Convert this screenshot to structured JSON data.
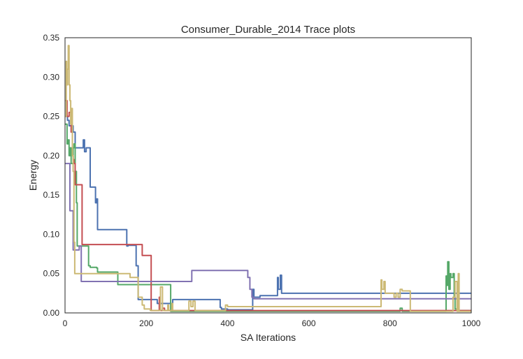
{
  "chart_data": {
    "type": "line",
    "title": "Consumer_Durable_2014 Trace plots",
    "xlabel": "SA Iterations",
    "ylabel": "Energy",
    "xlim": [
      0,
      1000
    ],
    "ylim": [
      0,
      0.35
    ],
    "xticks": [
      0,
      200,
      400,
      600,
      800,
      1000
    ],
    "xtick_labels": [
      "0",
      "200",
      "400",
      "600",
      "800",
      "1000"
    ],
    "yticks": [
      0,
      0.05,
      0.1,
      0.15,
      0.2,
      0.25,
      0.3,
      0.35
    ],
    "ytick_labels": [
      "0.00",
      "0.05",
      "0.10",
      "0.15",
      "0.20",
      "0.25",
      "0.30",
      "0.35"
    ],
    "grid": false,
    "legend": "none",
    "series": [
      {
        "color": "#4c72b0",
        "x": [
          0,
          3,
          6,
          10,
          12,
          16,
          20,
          25,
          45,
          48,
          52,
          62,
          70,
          75,
          78,
          80,
          150,
          152,
          155,
          170,
          175,
          180,
          225,
          227,
          265,
          268,
          380,
          382,
          385,
          400,
          460,
          462,
          465,
          470,
          480,
          520,
          523,
          525,
          530,
          532,
          533,
          1000
        ],
        "y": [
          0.25,
          0.25,
          0.245,
          0.238,
          0.238,
          0.238,
          0.23,
          0.21,
          0.22,
          0.205,
          0.21,
          0.16,
          0.16,
          0.14,
          0.145,
          0.106,
          0.106,
          0.085,
          0.086,
          0.086,
          0.06,
          0.017,
          0.017,
          0.012,
          0.017,
          0.017,
          0.017,
          0.007,
          0.005,
          0.004,
          0.004,
          0.03,
          0.02,
          0.02,
          0.022,
          0.022,
          0.045,
          0.03,
          0.048,
          0.048,
          0.025,
          0.025
        ]
      },
      {
        "color": "#55a868",
        "x": [
          0,
          3,
          5,
          8,
          10,
          12,
          15,
          18,
          20,
          22,
          25,
          28,
          30,
          50,
          58,
          62,
          75,
          78,
          80,
          110,
          130,
          132,
          200,
          220,
          230,
          232,
          258,
          260,
          800,
          820,
          825,
          830,
          935,
          938,
          940,
          942,
          945,
          948,
          950,
          955,
          958,
          960,
          965,
          968,
          975,
          1000
        ],
        "y": [
          0.24,
          0.24,
          0.215,
          0.22,
          0.2,
          0.21,
          0.19,
          0.19,
          0.21,
          0.215,
          0.18,
          0.14,
          0.085,
          0.085,
          0.06,
          0.058,
          0.058,
          0.057,
          0.052,
          0.052,
          0.036,
          0.036,
          0.036,
          0.036,
          0.036,
          0.036,
          0.036,
          0.002,
          0.002,
          0.002,
          0.006,
          0.002,
          0.002,
          0.047,
          0.035,
          0.065,
          0.03,
          0.05,
          0.045,
          0.05,
          0.02,
          0.005,
          0.02,
          0.003,
          0.003,
          0.003
        ]
      },
      {
        "color": "#c44e52",
        "x": [
          0,
          5,
          10,
          15,
          18,
          20,
          22,
          25,
          40,
          42,
          160,
          165,
          180,
          190,
          210,
          212,
          230,
          232,
          235,
          240,
          245,
          248,
          300,
          400,
          500,
          600,
          800,
          1000
        ],
        "y": [
          0.27,
          0.25,
          0.255,
          0.23,
          0.2,
          0.195,
          0.19,
          0.163,
          0.163,
          0.087,
          0.087,
          0.087,
          0.087,
          0.073,
          0.073,
          0.003,
          0.003,
          0.02,
          0.003,
          0.006,
          0.003,
          0.003,
          0.003,
          0.003,
          0.003,
          0.003,
          0.003,
          0.003
        ]
      },
      {
        "color": "#8172b2",
        "x": [
          0,
          3,
          10,
          12,
          18,
          20,
          30,
          35,
          38,
          40,
          310,
          312,
          445,
          450,
          455,
          460,
          465,
          1000
        ],
        "y": [
          0.19,
          0.19,
          0.19,
          0.13,
          0.13,
          0.08,
          0.08,
          0.085,
          0.085,
          0.04,
          0.04,
          0.054,
          0.054,
          0.045,
          0.03,
          0.02,
          0.018,
          0.018
        ]
      },
      {
        "color": "#ccb974",
        "x": [
          0,
          3,
          4,
          6,
          8,
          10,
          12,
          14,
          16,
          18,
          20,
          22,
          24,
          100,
          150,
          160,
          180,
          190,
          195,
          200,
          210,
          230,
          235,
          240,
          250,
          253,
          255,
          260,
          263,
          265,
          268,
          270,
          300,
          305,
          310,
          315,
          320,
          350,
          390,
          395,
          400,
          600,
          775,
          778,
          780,
          785,
          788,
          790,
          800,
          810,
          815,
          820,
          825,
          830,
          845,
          850,
          860,
          880,
          900,
          920,
          950,
          955,
          960,
          965,
          968,
          970,
          975,
          980,
          990,
          1000
        ],
        "y": [
          0.25,
          0.32,
          0.29,
          0.31,
          0.34,
          0.29,
          0.27,
          0.24,
          0.26,
          0.2,
          0.18,
          0.09,
          0.05,
          0.05,
          0.05,
          0.045,
          0.02,
          0.01,
          0.005,
          0.005,
          0.003,
          0.003,
          0.033,
          0.003,
          0.003,
          0.01,
          0.003,
          0.003,
          0.012,
          0.003,
          0.003,
          0.003,
          0.003,
          0.015,
          0.008,
          0.015,
          0.003,
          0.003,
          0.003,
          0.01,
          0.008,
          0.008,
          0.008,
          0.042,
          0.03,
          0.04,
          0.025,
          0.025,
          0.025,
          0.02,
          0.025,
          0.02,
          0.03,
          0.028,
          0.028,
          0.002,
          0.002,
          0.002,
          0.002,
          0.002,
          0.002,
          0.02,
          0.04,
          0.002,
          0.05,
          0.002,
          0.002,
          0.002,
          0.002,
          0.002
        ]
      }
    ]
  }
}
